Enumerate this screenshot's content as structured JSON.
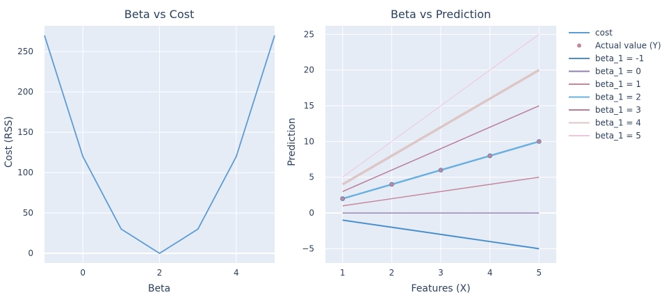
{
  "chart_data": [
    {
      "type": "line",
      "title": "Beta vs Cost",
      "xlabel": "Beta",
      "ylabel": "Cost (RSS)",
      "xlim": [
        -1,
        5
      ],
      "ylim": [
        -12,
        282
      ],
      "xticks": [
        0,
        2,
        4
      ],
      "yticks": [
        0,
        50,
        100,
        150,
        200,
        250
      ],
      "grid": true,
      "series": [
        {
          "name": "cost",
          "color": "#5b9bd5",
          "width": 1.8,
          "x": [
            -1,
            0,
            1,
            2,
            3,
            4,
            5
          ],
          "y": [
            270,
            120,
            30,
            0,
            30,
            120,
            270
          ]
        }
      ]
    },
    {
      "type": "line",
      "title": "Beta vs Prediction",
      "xlabel": "Features (X)",
      "ylabel": "Prediction",
      "xlim": [
        0.65,
        5.35
      ],
      "ylim": [
        -7,
        26.2
      ],
      "xticks": [
        1,
        2,
        3,
        4,
        5
      ],
      "yticks": [
        -5,
        0,
        5,
        10,
        15,
        20,
        25
      ],
      "grid": true,
      "x": [
        1,
        2,
        3,
        4,
        5
      ],
      "series": [
        {
          "name": "beta_1 = -1",
          "color": "#4a8fca",
          "width": 2,
          "y": [
            -1,
            -2,
            -3,
            -4,
            -5
          ]
        },
        {
          "name": "beta_1 = 0",
          "color": "#9181b2",
          "width": 1.5,
          "y": [
            0,
            0,
            0,
            0,
            0
          ]
        },
        {
          "name": "beta_1 = 1",
          "color": "#c3879c",
          "width": 1.5,
          "y": [
            1,
            2,
            3,
            4,
            5
          ]
        },
        {
          "name": "beta_1 = 2",
          "color": "#6ab0de",
          "width": 2.5,
          "y": [
            2,
            4,
            6,
            8,
            10
          ]
        },
        {
          "name": "beta_1 = 3",
          "color": "#b87d9b",
          "width": 1.5,
          "y": [
            3,
            6,
            9,
            12,
            15
          ]
        },
        {
          "name": "beta_1 = 4",
          "color": "#dcc6c6",
          "width": 3.5,
          "y": [
            4,
            8,
            12,
            16,
            20
          ]
        },
        {
          "name": "beta_1 = 5",
          "color": "#efc4dd",
          "width": 1,
          "y": [
            5,
            10,
            15,
            20,
            25
          ]
        }
      ],
      "scatter": {
        "name": "Actual value (Y)",
        "color": "#c3879c",
        "x": [
          1,
          2,
          3,
          4,
          5
        ],
        "y": [
          2,
          4,
          6,
          8,
          10
        ]
      }
    }
  ],
  "legend": {
    "placement": "right",
    "items": [
      {
        "label": "cost",
        "color": "#5b9bd5",
        "kind": "line"
      },
      {
        "label": "Actual value (Y)",
        "color": "#c3879c",
        "kind": "marker"
      },
      {
        "label": "beta_1 = -1",
        "color": "#4a8fca",
        "kind": "line"
      },
      {
        "label": "beta_1 = 0",
        "color": "#9181b2",
        "kind": "line"
      },
      {
        "label": "beta_1 = 1",
        "color": "#c3879c",
        "kind": "line"
      },
      {
        "label": "beta_1 = 2",
        "color": "#6ab0de",
        "kind": "line"
      },
      {
        "label": "beta_1 = 3",
        "color": "#b87d9b",
        "kind": "line"
      },
      {
        "label": "beta_1 = 4",
        "color": "#dcc6c6",
        "kind": "line"
      },
      {
        "label": "beta_1 = 5",
        "color": "#efc4dd",
        "kind": "line"
      }
    ]
  },
  "style": {
    "plot_bg": "#e5ecf6",
    "grid_color": "#ffffff",
    "text_color": "#2a3f5f"
  }
}
